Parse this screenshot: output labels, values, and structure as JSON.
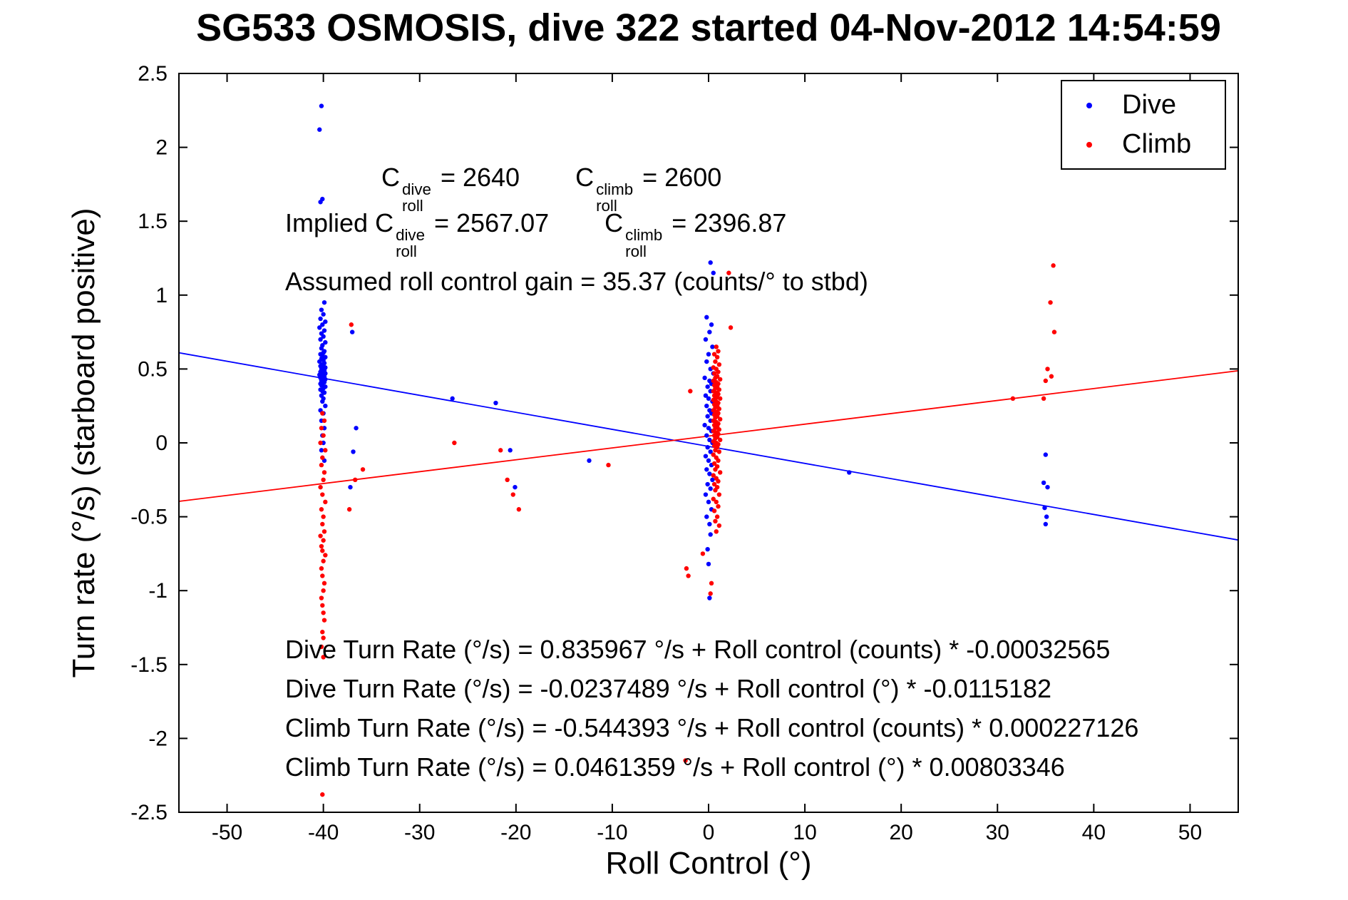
{
  "title": "SG533 OSMOSIS, dive 322 started 04-Nov-2012 14:54:59",
  "annotations": {
    "c_line": {
      "c1_base": "C",
      "c1_sup": "dive",
      "c1_sub": "roll",
      "c1_eq": " = 2640",
      "c2_base": "C",
      "c2_sup": "climb",
      "c2_sub": "roll",
      "c2_eq": " = 2600"
    },
    "implied_line": {
      "prefix": "Implied ",
      "c1_base": "C",
      "c1_sup": "dive",
      "c1_sub": "roll",
      "c1_eq": " = 2567.07",
      "c2_base": "C",
      "c2_sup": "climb",
      "c2_sub": "roll",
      "c2_eq": " = 2396.87"
    },
    "gain_line": "Assumed roll control gain = 35.37 (counts/° to stbd)",
    "fit_lines": [
      "Dive Turn Rate (°/s) = 0.835967 °/s + Roll control (counts) * -0.00032565",
      "Dive Turn Rate (°/s) = -0.0237489 °/s + Roll control (°) * -0.0115182",
      "Climb Turn Rate (°/s) = -0.544393 °/s + Roll control (counts) * 0.000227126",
      "Climb Turn Rate (°/s) = 0.0461359 °/s + Roll control (°) * 0.00803346"
    ]
  },
  "chart_data": {
    "type": "scatter",
    "title": "SG533 OSMOSIS, dive 322 started 04-Nov-2012 14:54:59",
    "xlabel": "Roll Control (°)",
    "ylabel": "Turn rate (°/s) (starboard positive)",
    "xlim": [
      -55,
      55
    ],
    "ylim": [
      -2.5,
      2.5
    ],
    "xticks": [
      -50,
      -40,
      -30,
      -20,
      -10,
      0,
      10,
      20,
      30,
      40,
      50
    ],
    "xtick_labels": [
      "-50",
      "-40",
      "-30",
      "-20",
      "-10",
      "0",
      "10",
      "20",
      "30",
      "40",
      "50"
    ],
    "yticks": [
      -2.5,
      -2,
      -1.5,
      -1,
      -0.5,
      0,
      0.5,
      1,
      1.5,
      2,
      2.5
    ],
    "ytick_labels": [
      "-2.5",
      "-2",
      "-1.5",
      "-1",
      "-0.5",
      "0",
      "0.5",
      "1",
      "1.5",
      "2",
      "2.5"
    ],
    "grid": false,
    "legend": {
      "position": "top-right",
      "entries": [
        {
          "label": "Dive",
          "color": "#0000ff"
        },
        {
          "label": "Climb",
          "color": "#ff0000"
        }
      ]
    },
    "fit_lines": [
      {
        "name": "dive-fit-line",
        "color": "#0000ff",
        "intercept": -0.0237489,
        "slope": -0.0115182
      },
      {
        "name": "climb-fit-line",
        "color": "#ff0000",
        "intercept": 0.0461359,
        "slope": 0.00803346
      }
    ],
    "series": [
      {
        "name": "Dive",
        "color": "#0000ff",
        "marker": "dot",
        "points": [
          [
            -40.2,
            2.28
          ],
          [
            -40.4,
            2.12
          ],
          [
            -40.1,
            1.65
          ],
          [
            -40.3,
            1.63
          ],
          [
            -39.9,
            0.95
          ],
          [
            -40.2,
            0.9
          ],
          [
            -40.0,
            0.87
          ],
          [
            -40.3,
            0.84
          ],
          [
            -39.8,
            0.82
          ],
          [
            -40.1,
            0.8
          ],
          [
            -40.4,
            0.78
          ],
          [
            -39.9,
            0.76
          ],
          [
            -40.2,
            0.74
          ],
          [
            -40.0,
            0.72
          ],
          [
            -40.3,
            0.7
          ],
          [
            -39.8,
            0.68
          ],
          [
            -40.1,
            0.66
          ],
          [
            -40.2,
            0.64
          ],
          [
            -39.9,
            0.62
          ],
          [
            -40.0,
            0.61
          ],
          [
            -40.3,
            0.6
          ],
          [
            -40.1,
            0.59
          ],
          [
            -39.8,
            0.58
          ],
          [
            -40.2,
            0.57
          ],
          [
            -40.0,
            0.56
          ],
          [
            -40.4,
            0.55
          ],
          [
            -39.9,
            0.54
          ],
          [
            -40.1,
            0.53
          ],
          [
            -40.3,
            0.52
          ],
          [
            -40.0,
            0.52
          ],
          [
            -39.8,
            0.51
          ],
          [
            -40.2,
            0.5
          ],
          [
            -40.1,
            0.5
          ],
          [
            -39.9,
            0.49
          ],
          [
            -40.3,
            0.48
          ],
          [
            -40.0,
            0.48
          ],
          [
            -40.2,
            0.47
          ],
          [
            -39.8,
            0.47
          ],
          [
            -40.1,
            0.46
          ],
          [
            -40.4,
            0.46
          ],
          [
            -39.9,
            0.45
          ],
          [
            -40.2,
            0.45
          ],
          [
            -40.0,
            0.44
          ],
          [
            -40.3,
            0.44
          ],
          [
            -40.1,
            0.43
          ],
          [
            -39.8,
            0.43
          ],
          [
            -40.2,
            0.42
          ],
          [
            -40.0,
            0.42
          ],
          [
            -39.9,
            0.41
          ],
          [
            -40.3,
            0.4
          ],
          [
            -40.1,
            0.4
          ],
          [
            -40.2,
            0.39
          ],
          [
            -39.8,
            0.38
          ],
          [
            -40.0,
            0.37
          ],
          [
            -40.3,
            0.36
          ],
          [
            -40.1,
            0.35
          ],
          [
            -39.9,
            0.34
          ],
          [
            -40.2,
            0.32
          ],
          [
            -40.0,
            0.3
          ],
          [
            -40.1,
            0.28
          ],
          [
            -39.8,
            0.25
          ],
          [
            -40.3,
            0.22
          ],
          [
            -40.0,
            0.2
          ],
          [
            -40.2,
            0.15
          ],
          [
            -39.9,
            0.1
          ],
          [
            -40.1,
            0.05
          ],
          [
            -40.0,
            0.0
          ],
          [
            -40.2,
            -0.05
          ],
          [
            -39.9,
            -0.12
          ],
          [
            -37.0,
            0.75
          ],
          [
            -36.6,
            0.1
          ],
          [
            -36.9,
            -0.06
          ],
          [
            -37.2,
            -0.3
          ],
          [
            -26.6,
            0.3
          ],
          [
            -22.1,
            0.27
          ],
          [
            -20.6,
            -0.05
          ],
          [
            -20.1,
            -0.3
          ],
          [
            -12.4,
            -0.12
          ],
          [
            0.2,
            1.22
          ],
          [
            0.5,
            1.15
          ],
          [
            -0.2,
            0.85
          ],
          [
            0.3,
            0.8
          ],
          [
            0.1,
            0.75
          ],
          [
            -0.3,
            0.7
          ],
          [
            0.4,
            0.65
          ],
          [
            0.0,
            0.6
          ],
          [
            -0.2,
            0.55
          ],
          [
            0.2,
            0.5
          ],
          [
            0.5,
            0.47
          ],
          [
            -0.4,
            0.44
          ],
          [
            0.1,
            0.42
          ],
          [
            0.3,
            0.4
          ],
          [
            -0.1,
            0.38
          ],
          [
            0.2,
            0.35
          ],
          [
            -0.3,
            0.32
          ],
          [
            0.0,
            0.3
          ],
          [
            0.4,
            0.28
          ],
          [
            -0.2,
            0.25
          ],
          [
            0.1,
            0.22
          ],
          [
            0.3,
            0.2
          ],
          [
            -0.1,
            0.18
          ],
          [
            0.2,
            0.15
          ],
          [
            -0.4,
            0.12
          ],
          [
            0.0,
            0.1
          ],
          [
            0.3,
            0.08
          ],
          [
            -0.2,
            0.05
          ],
          [
            0.1,
            0.02
          ],
          [
            0.4,
            0.0
          ],
          [
            -0.1,
            -0.03
          ],
          [
            0.2,
            -0.06
          ],
          [
            -0.3,
            -0.09
          ],
          [
            0.0,
            -0.12
          ],
          [
            0.3,
            -0.15
          ],
          [
            -0.2,
            -0.18
          ],
          [
            0.1,
            -0.21
          ],
          [
            0.4,
            -0.25
          ],
          [
            -0.1,
            -0.28
          ],
          [
            0.2,
            -0.31
          ],
          [
            -0.3,
            -0.35
          ],
          [
            0.0,
            -0.4
          ],
          [
            0.3,
            -0.45
          ],
          [
            -0.2,
            -0.5
          ],
          [
            0.1,
            -0.55
          ],
          [
            0.2,
            -0.62
          ],
          [
            -0.1,
            -0.72
          ],
          [
            0.0,
            -0.82
          ],
          [
            0.1,
            -1.05
          ],
          [
            14.6,
            -0.2
          ],
          [
            35.0,
            -0.08
          ],
          [
            34.8,
            -0.27
          ],
          [
            35.2,
            -0.3
          ],
          [
            34.9,
            -0.44
          ],
          [
            35.1,
            -0.5
          ],
          [
            35.0,
            -0.55
          ]
        ]
      },
      {
        "name": "Climb",
        "color": "#ff0000",
        "marker": "dot",
        "points": [
          [
            -40.1,
            0.2
          ],
          [
            -39.9,
            0.15
          ],
          [
            -40.2,
            0.1
          ],
          [
            -40.0,
            0.05
          ],
          [
            -40.3,
            0.0
          ],
          [
            -39.8,
            -0.05
          ],
          [
            -40.1,
            -0.1
          ],
          [
            -40.2,
            -0.15
          ],
          [
            -39.9,
            -0.2
          ],
          [
            -40.0,
            -0.25
          ],
          [
            -40.3,
            -0.3
          ],
          [
            -40.1,
            -0.35
          ],
          [
            -39.8,
            -0.4
          ],
          [
            -40.2,
            -0.45
          ],
          [
            -40.0,
            -0.5
          ],
          [
            -40.1,
            -0.55
          ],
          [
            -39.9,
            -0.6
          ],
          [
            -40.3,
            -0.63
          ],
          [
            -40.0,
            -0.66
          ],
          [
            -40.2,
            -0.7
          ],
          [
            -40.1,
            -0.73
          ],
          [
            -39.8,
            -0.76
          ],
          [
            -40.0,
            -0.8
          ],
          [
            -40.2,
            -0.85
          ],
          [
            -40.1,
            -0.9
          ],
          [
            -39.9,
            -0.95
          ],
          [
            -40.0,
            -1.0
          ],
          [
            -40.2,
            -1.05
          ],
          [
            -40.1,
            -1.1
          ],
          [
            -40.0,
            -1.15
          ],
          [
            -39.9,
            -1.2
          ],
          [
            -40.1,
            -1.28
          ],
          [
            -40.0,
            -1.32
          ],
          [
            -40.2,
            -1.38
          ],
          [
            -40.0,
            -1.45
          ],
          [
            -40.1,
            -2.38
          ],
          [
            -37.1,
            0.8
          ],
          [
            -36.7,
            -0.25
          ],
          [
            -37.3,
            -0.45
          ],
          [
            -35.9,
            -0.18
          ],
          [
            -26.4,
            0.0
          ],
          [
            -21.6,
            -0.05
          ],
          [
            -20.9,
            -0.25
          ],
          [
            -20.3,
            -0.35
          ],
          [
            -19.7,
            -0.45
          ],
          [
            -10.4,
            -0.15
          ],
          [
            0.8,
            0.65
          ],
          [
            1.0,
            0.62
          ],
          [
            0.6,
            0.6
          ],
          [
            0.9,
            0.58
          ],
          [
            0.7,
            0.55
          ],
          [
            1.1,
            0.53
          ],
          [
            0.5,
            0.51
          ],
          [
            0.8,
            0.5
          ],
          [
            1.0,
            0.48
          ],
          [
            0.6,
            0.47
          ],
          [
            0.9,
            0.45
          ],
          [
            0.7,
            0.44
          ],
          [
            1.2,
            0.43
          ],
          [
            0.5,
            0.42
          ],
          [
            0.8,
            0.41
          ],
          [
            1.0,
            0.4
          ],
          [
            0.6,
            0.39
          ],
          [
            0.9,
            0.38
          ],
          [
            0.7,
            0.37
          ],
          [
            1.1,
            0.36
          ],
          [
            0.5,
            0.35
          ],
          [
            0.8,
            0.34
          ],
          [
            1.0,
            0.33
          ],
          [
            0.6,
            0.32
          ],
          [
            0.9,
            0.31
          ],
          [
            0.7,
            0.3
          ],
          [
            1.2,
            0.3
          ],
          [
            0.5,
            0.29
          ],
          [
            0.8,
            0.28
          ],
          [
            1.0,
            0.27
          ],
          [
            0.6,
            0.26
          ],
          [
            0.9,
            0.25
          ],
          [
            0.7,
            0.24
          ],
          [
            1.1,
            0.23
          ],
          [
            0.5,
            0.22
          ],
          [
            0.8,
            0.21
          ],
          [
            1.0,
            0.2
          ],
          [
            0.6,
            0.19
          ],
          [
            0.9,
            0.18
          ],
          [
            0.7,
            0.17
          ],
          [
            1.2,
            0.16
          ],
          [
            0.5,
            0.15
          ],
          [
            0.8,
            0.14
          ],
          [
            1.0,
            0.13
          ],
          [
            0.6,
            0.12
          ],
          [
            0.9,
            0.11
          ],
          [
            0.7,
            0.1
          ],
          [
            1.1,
            0.09
          ],
          [
            0.5,
            0.08
          ],
          [
            0.8,
            0.07
          ],
          [
            1.0,
            0.06
          ],
          [
            0.6,
            0.05
          ],
          [
            0.9,
            0.04
          ],
          [
            0.7,
            0.03
          ],
          [
            1.2,
            0.02
          ],
          [
            0.5,
            0.01
          ],
          [
            0.8,
            0.0
          ],
          [
            1.0,
            -0.01
          ],
          [
            0.6,
            -0.02
          ],
          [
            0.9,
            -0.03
          ],
          [
            0.7,
            -0.05
          ],
          [
            1.1,
            -0.06
          ],
          [
            0.5,
            -0.08
          ],
          [
            0.8,
            -0.1
          ],
          [
            1.0,
            -0.12
          ],
          [
            0.6,
            -0.14
          ],
          [
            0.9,
            -0.16
          ],
          [
            0.7,
            -0.18
          ],
          [
            1.2,
            -0.2
          ],
          [
            0.5,
            -0.22
          ],
          [
            0.8,
            -0.24
          ],
          [
            1.0,
            -0.26
          ],
          [
            0.6,
            -0.28
          ],
          [
            0.9,
            -0.3
          ],
          [
            0.7,
            -0.32
          ],
          [
            1.1,
            -0.35
          ],
          [
            0.5,
            -0.38
          ],
          [
            0.8,
            -0.4
          ],
          [
            1.0,
            -0.43
          ],
          [
            0.6,
            -0.46
          ],
          [
            0.9,
            -0.5
          ],
          [
            0.7,
            -0.53
          ],
          [
            1.1,
            -0.56
          ],
          [
            0.8,
            -0.6
          ],
          [
            2.1,
            1.15
          ],
          [
            2.3,
            0.78
          ],
          [
            -1.9,
            0.35
          ],
          [
            -2.3,
            -0.85
          ],
          [
            -2.1,
            -0.9
          ],
          [
            -0.6,
            -0.75
          ],
          [
            0.3,
            -0.95
          ],
          [
            0.2,
            -1.02
          ],
          [
            -2.4,
            -2.15
          ],
          [
            35.8,
            1.2
          ],
          [
            35.5,
            0.95
          ],
          [
            35.9,
            0.75
          ],
          [
            35.2,
            0.5
          ],
          [
            35.6,
            0.45
          ],
          [
            35.0,
            0.42
          ],
          [
            34.8,
            0.3
          ],
          [
            31.6,
            0.3
          ]
        ]
      }
    ]
  }
}
